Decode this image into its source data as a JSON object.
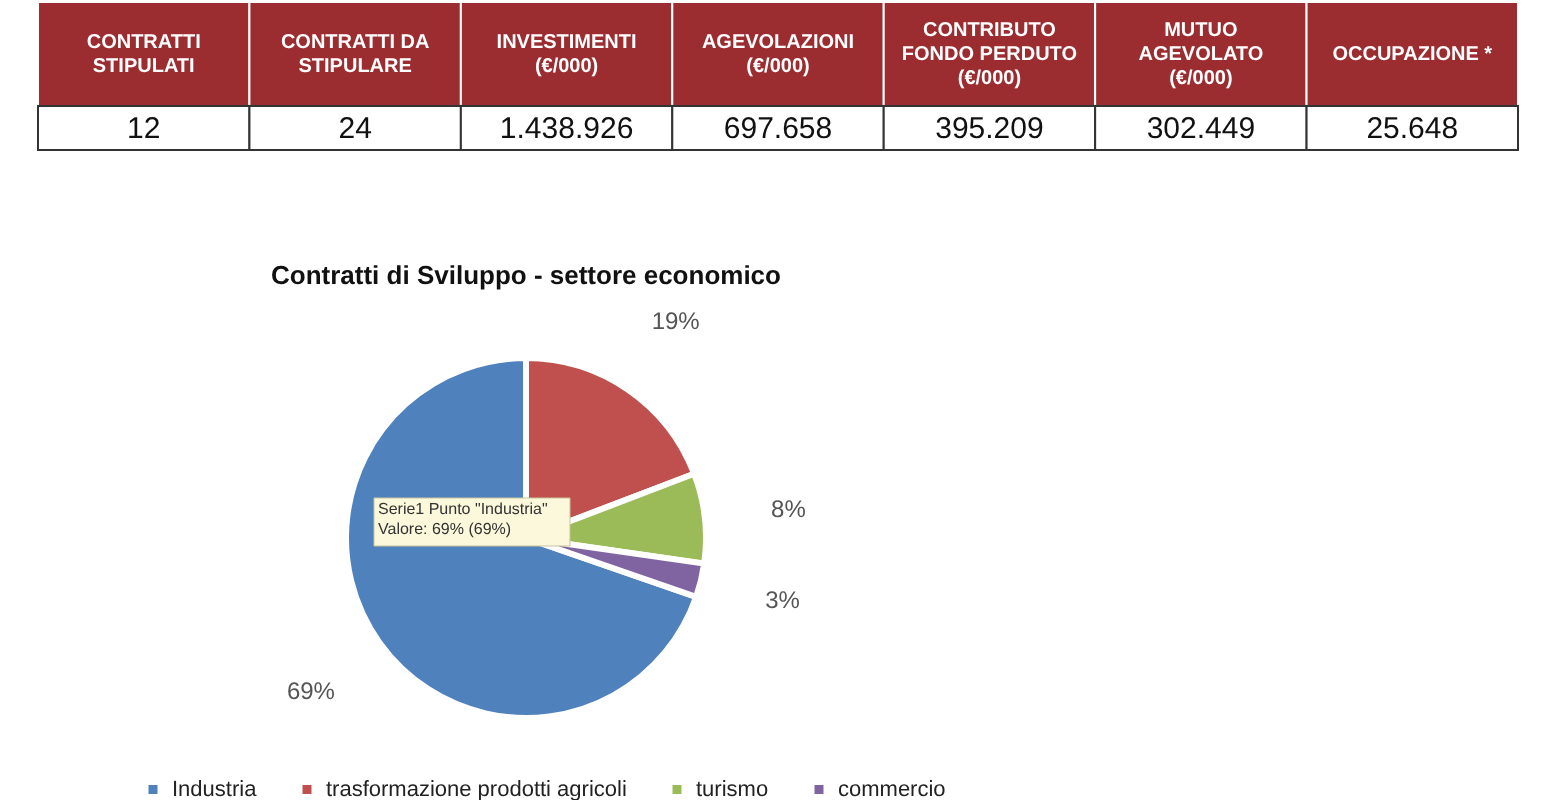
{
  "chart_data": [
    {
      "type": "other",
      "categories": [
        "CONTRATTI\nSTIPULATI",
        "CONTRATTI DA\nSTIPULARE",
        "INVESTIMENTI\n(€/000)",
        "AGEVOLAZIONI\n(€/000)",
        "CONTRIBUTO\nFONDO PERDUTO\n(€/000)",
        "MUTUO\nAGEVOLATO\n(€/000)",
        "OCCUPAZIONE *"
      ],
      "values": [
        12,
        24,
        1438926,
        697658,
        395209,
        302449,
        25648
      ],
      "value_labels": [
        "12",
        "24",
        "1.438.926",
        "697.658",
        "395.209",
        "302.449",
        "25.648"
      ]
    },
    {
      "type": "pie",
      "title": "Contratti di Sviluppo - settore economico",
      "categories": [
        "Industria",
        "trasformazione prodotti agricoli",
        "turismo",
        "commercio"
      ],
      "values": [
        69,
        19,
        8,
        3
      ],
      "colors": [
        "#4f81bd",
        "#c0504d",
        "#9bbb59",
        "#8064a2"
      ],
      "value_labels": [
        "69%",
        "19%",
        "8%",
        "3%"
      ],
      "legend": "bottom",
      "annotations": [
        "Serie1 Punto \"Industria\"\nValore: 69% (69%)"
      ]
    }
  ]
}
